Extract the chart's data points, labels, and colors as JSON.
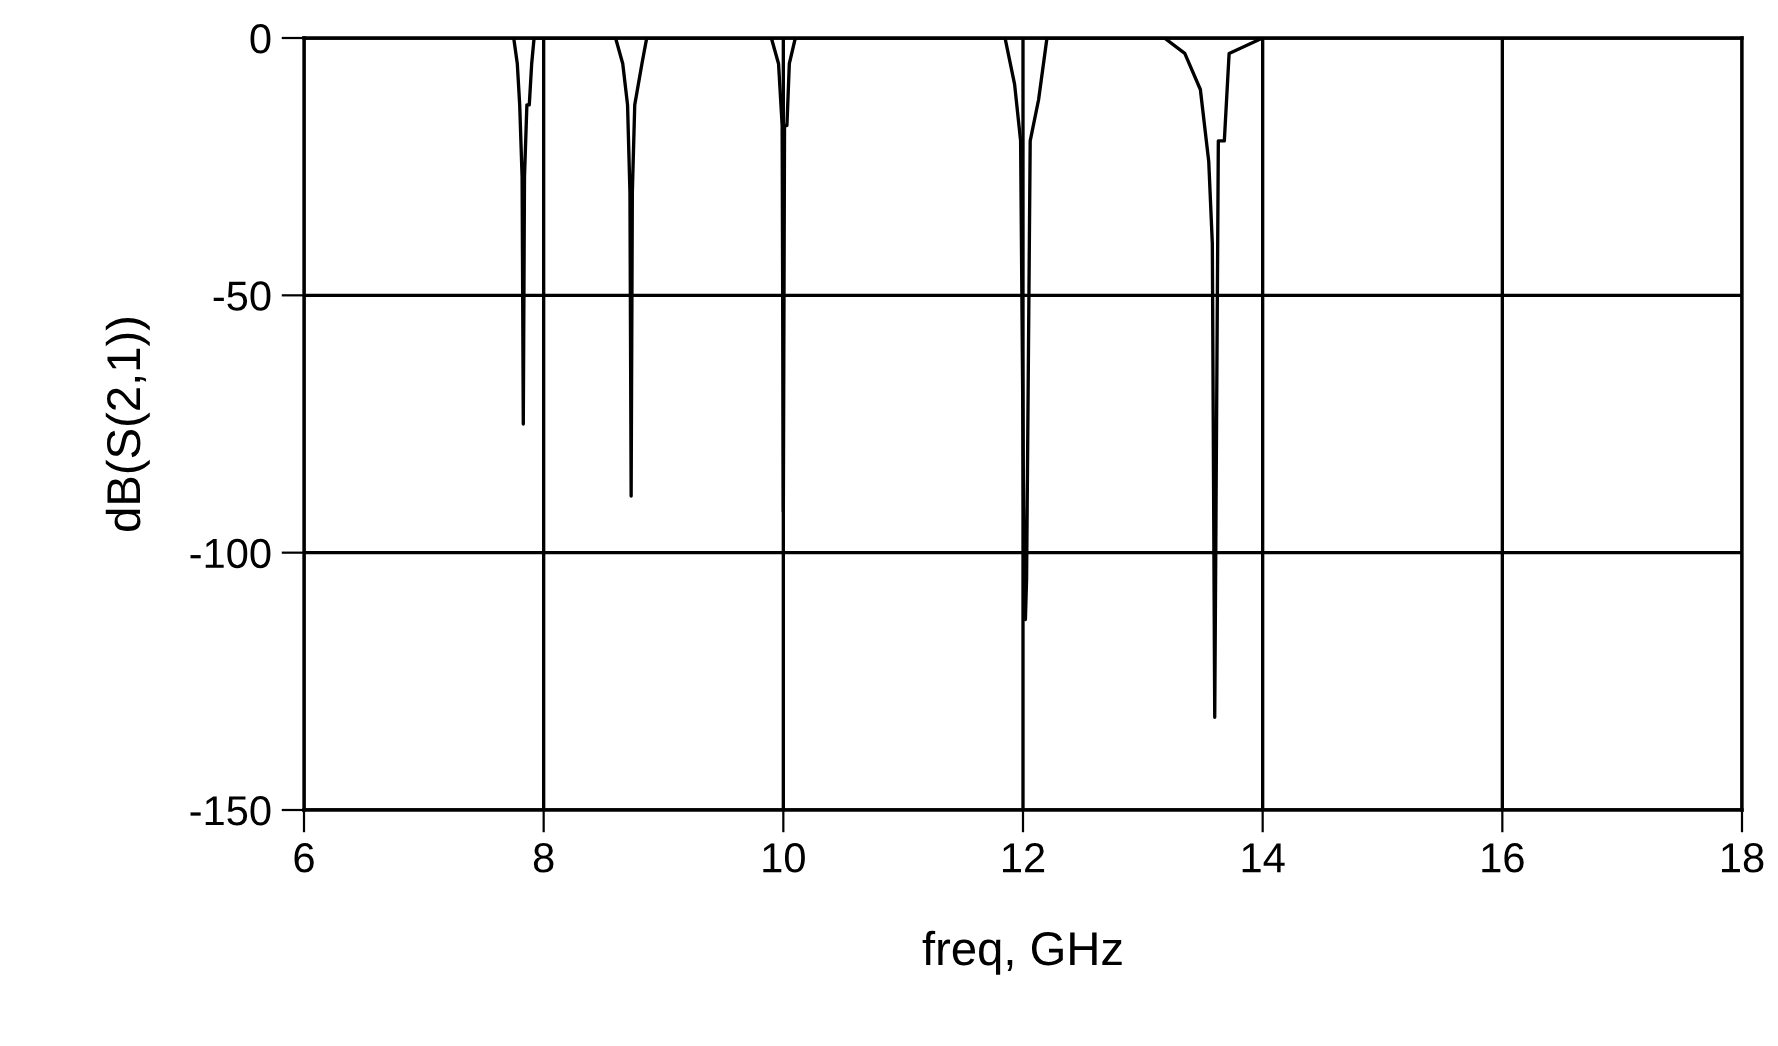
{
  "chart_data": {
    "type": "line",
    "xlabel": "freq, GHz",
    "ylabel": "dB(S(2,1))",
    "xlim": [
      6,
      18
    ],
    "ylim": [
      -150,
      0
    ],
    "xticks": [
      6,
      8,
      10,
      12,
      14,
      16,
      18
    ],
    "yticks": [
      -150,
      -100,
      -50,
      0
    ],
    "grid": true,
    "marker": "none",
    "line_style": "solid",
    "series": [
      {
        "color": "#000000",
        "x": [
          7.75,
          7.78,
          7.8,
          7.82,
          7.83,
          7.84,
          7.86,
          7.88,
          7.9,
          7.92,
          8.6,
          8.66,
          8.7,
          8.72,
          8.73,
          8.74,
          8.76,
          8.82,
          8.86,
          9.9,
          9.96,
          9.99,
          10.0,
          10.01,
          10.03,
          10.05,
          10.1,
          11.85,
          11.93,
          11.98,
          12.01,
          12.02,
          12.03,
          12.06,
          12.13,
          12.2,
          13.18,
          13.35,
          13.48,
          13.55,
          13.58,
          13.6,
          13.63,
          13.68,
          13.72,
          14.0
        ],
        "values": [
          0,
          -5,
          -13,
          -27,
          -75,
          -27,
          -13,
          -13,
          -5,
          0,
          0,
          -5,
          -13,
          -30,
          -89,
          -30,
          -13,
          -5,
          0,
          0,
          -5,
          -17,
          -92,
          -17,
          -17,
          -5,
          0,
          0,
          -9,
          -20,
          -105,
          -113,
          -105,
          -20,
          -12,
          0,
          0,
          -3,
          -10,
          -24,
          -40,
          -132,
          -20,
          -20,
          -3,
          0
        ]
      }
    ]
  }
}
